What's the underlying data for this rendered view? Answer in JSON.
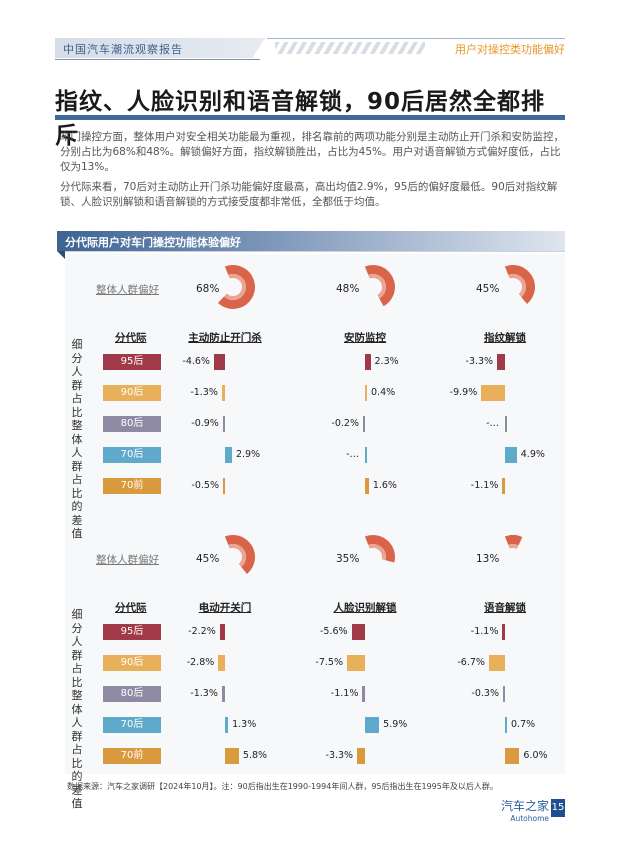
{
  "header": {
    "report_title": "中国汽车潮流观察报告",
    "section_tag": "用户对操控类功能偏好"
  },
  "page_title": "指纹、人脸识别和语音解锁，90后居然全都排斥",
  "paragraphs": [
    "车门操控方面，整体用户对安全相关功能最为重视，排名靠前的两项功能分别是主动防止开门杀和安防监控，分别占比为68%和48%。解锁偏好方面，指纹解锁胜出，占比为45%。用户对语音解锁方式偏好度低，占比仅为13%。",
    "分代际来看，70后对主动防止开门杀功能偏好度最高，高出均值2.9%，95后的偏好度最低。90后对指纹解锁、人脸识别解锁和语音解锁的方式接受度都非常低，全都低于均值。"
  ],
  "section_title": "分代际用户对车门操控功能体验偏好",
  "labels": {
    "overall": "整体人群偏好",
    "generation_header": "分代际",
    "side_label": "细分人群占比整体人群占比的差值"
  },
  "generations": [
    {
      "label": "95后",
      "color": "#a03a48"
    },
    {
      "label": "90后",
      "color": "#e8b05a"
    },
    {
      "label": "80后",
      "color": "#8e8aa3"
    },
    {
      "label": "70后",
      "color": "#5fa9cb"
    },
    {
      "label": "70前",
      "color": "#d99a3e"
    }
  ],
  "colors": {
    "donut_outer": "#d9644a",
    "donut_inner": "#eaa593",
    "header_blue": "#3f6a99",
    "accent_orange": "#e8962a"
  },
  "chart_data": [
    {
      "type": "bar",
      "title": "分代际用户对车门操控功能体验偏好 (上组)",
      "categories": [
        "95后",
        "90后",
        "80后",
        "70后",
        "70前"
      ],
      "series": [
        {
          "name": "主动防止开门杀",
          "overall": 68,
          "values": [
            -4.6,
            -1.3,
            -0.9,
            2.9,
            -0.5
          ],
          "labels": [
            "-4.6%",
            "-1.3%",
            "-0.9%",
            "2.9%",
            "-0.5%"
          ]
        },
        {
          "name": "安防监控",
          "overall": 48,
          "values": [
            2.3,
            0.4,
            -0.2,
            0.0,
            1.6
          ],
          "labels": [
            "2.3%",
            "0.4%",
            "-0.2%",
            "-…",
            "1.6%"
          ]
        },
        {
          "name": "指纹解锁",
          "overall": 45,
          "values": [
            -3.3,
            -9.9,
            0.0,
            4.9,
            -1.1
          ],
          "labels": [
            "-3.3%",
            "-9.9%",
            "-…",
            "4.9%",
            "-1.1%"
          ]
        }
      ],
      "ylabel": "细分人群占比整体人群占比的差值"
    },
    {
      "type": "bar",
      "title": "分代际用户对车门操控功能体验偏好 (下组)",
      "categories": [
        "95后",
        "90后",
        "80后",
        "70后",
        "70前"
      ],
      "series": [
        {
          "name": "电动开关门",
          "overall": 45,
          "values": [
            -2.2,
            -2.8,
            -1.3,
            1.3,
            5.8
          ],
          "labels": [
            "-2.2%",
            "-2.8%",
            "-1.3%",
            "1.3%",
            "5.8%"
          ]
        },
        {
          "name": "人脸识别解锁",
          "overall": 35,
          "values": [
            -5.6,
            -7.5,
            -1.1,
            5.9,
            -3.3
          ],
          "labels": [
            "-5.6%",
            "-7.5%",
            "-1.1%",
            "5.9%",
            "-3.3%"
          ]
        },
        {
          "name": "语音解锁",
          "overall": 13,
          "values": [
            -1.1,
            -6.7,
            -0.3,
            0.7,
            6.0
          ],
          "labels": [
            "-1.1%",
            "-6.7%",
            "-0.3%",
            "0.7%",
            "6.0%"
          ]
        }
      ],
      "ylabel": "细分人群占比整体人群占比的差值"
    }
  ],
  "footer": {
    "source": "数据来源：汽车之家调研【2024年10月】。注：90后指出生在1990-1994年间人群，95后指出生在1995年及以后人群。",
    "brand_cn": "汽车之家",
    "brand_en": "Autohome",
    "page_number": "15"
  }
}
